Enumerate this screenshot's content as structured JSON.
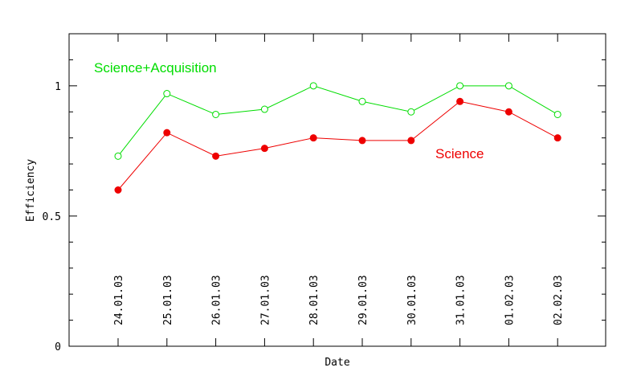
{
  "chart_data": {
    "type": "line",
    "title": "",
    "xlabel": "Date",
    "ylabel": "Efficiency",
    "ylim": [
      0,
      1.2
    ],
    "yticks": [
      "0",
      "0.5",
      "1"
    ],
    "grid": false,
    "categories": [
      "24.01.03",
      "25.01.03",
      "26.01.03",
      "27.01.03",
      "28.01.03",
      "29.01.03",
      "30.01.03",
      "31.01.03",
      "01.02.03",
      "02.02.03"
    ],
    "series": [
      {
        "name": "Science+Acquisition",
        "color": "#00dd00",
        "marker": "open-circle",
        "values": [
          0.73,
          0.97,
          0.89,
          0.91,
          1.0,
          0.94,
          0.9,
          1.0,
          1.0,
          0.89
        ]
      },
      {
        "name": "Science",
        "color": "#ee0000",
        "marker": "filled-circle",
        "values": [
          0.6,
          0.82,
          0.73,
          0.76,
          0.8,
          0.79,
          0.79,
          0.94,
          0.9,
          0.8
        ]
      }
    ]
  }
}
